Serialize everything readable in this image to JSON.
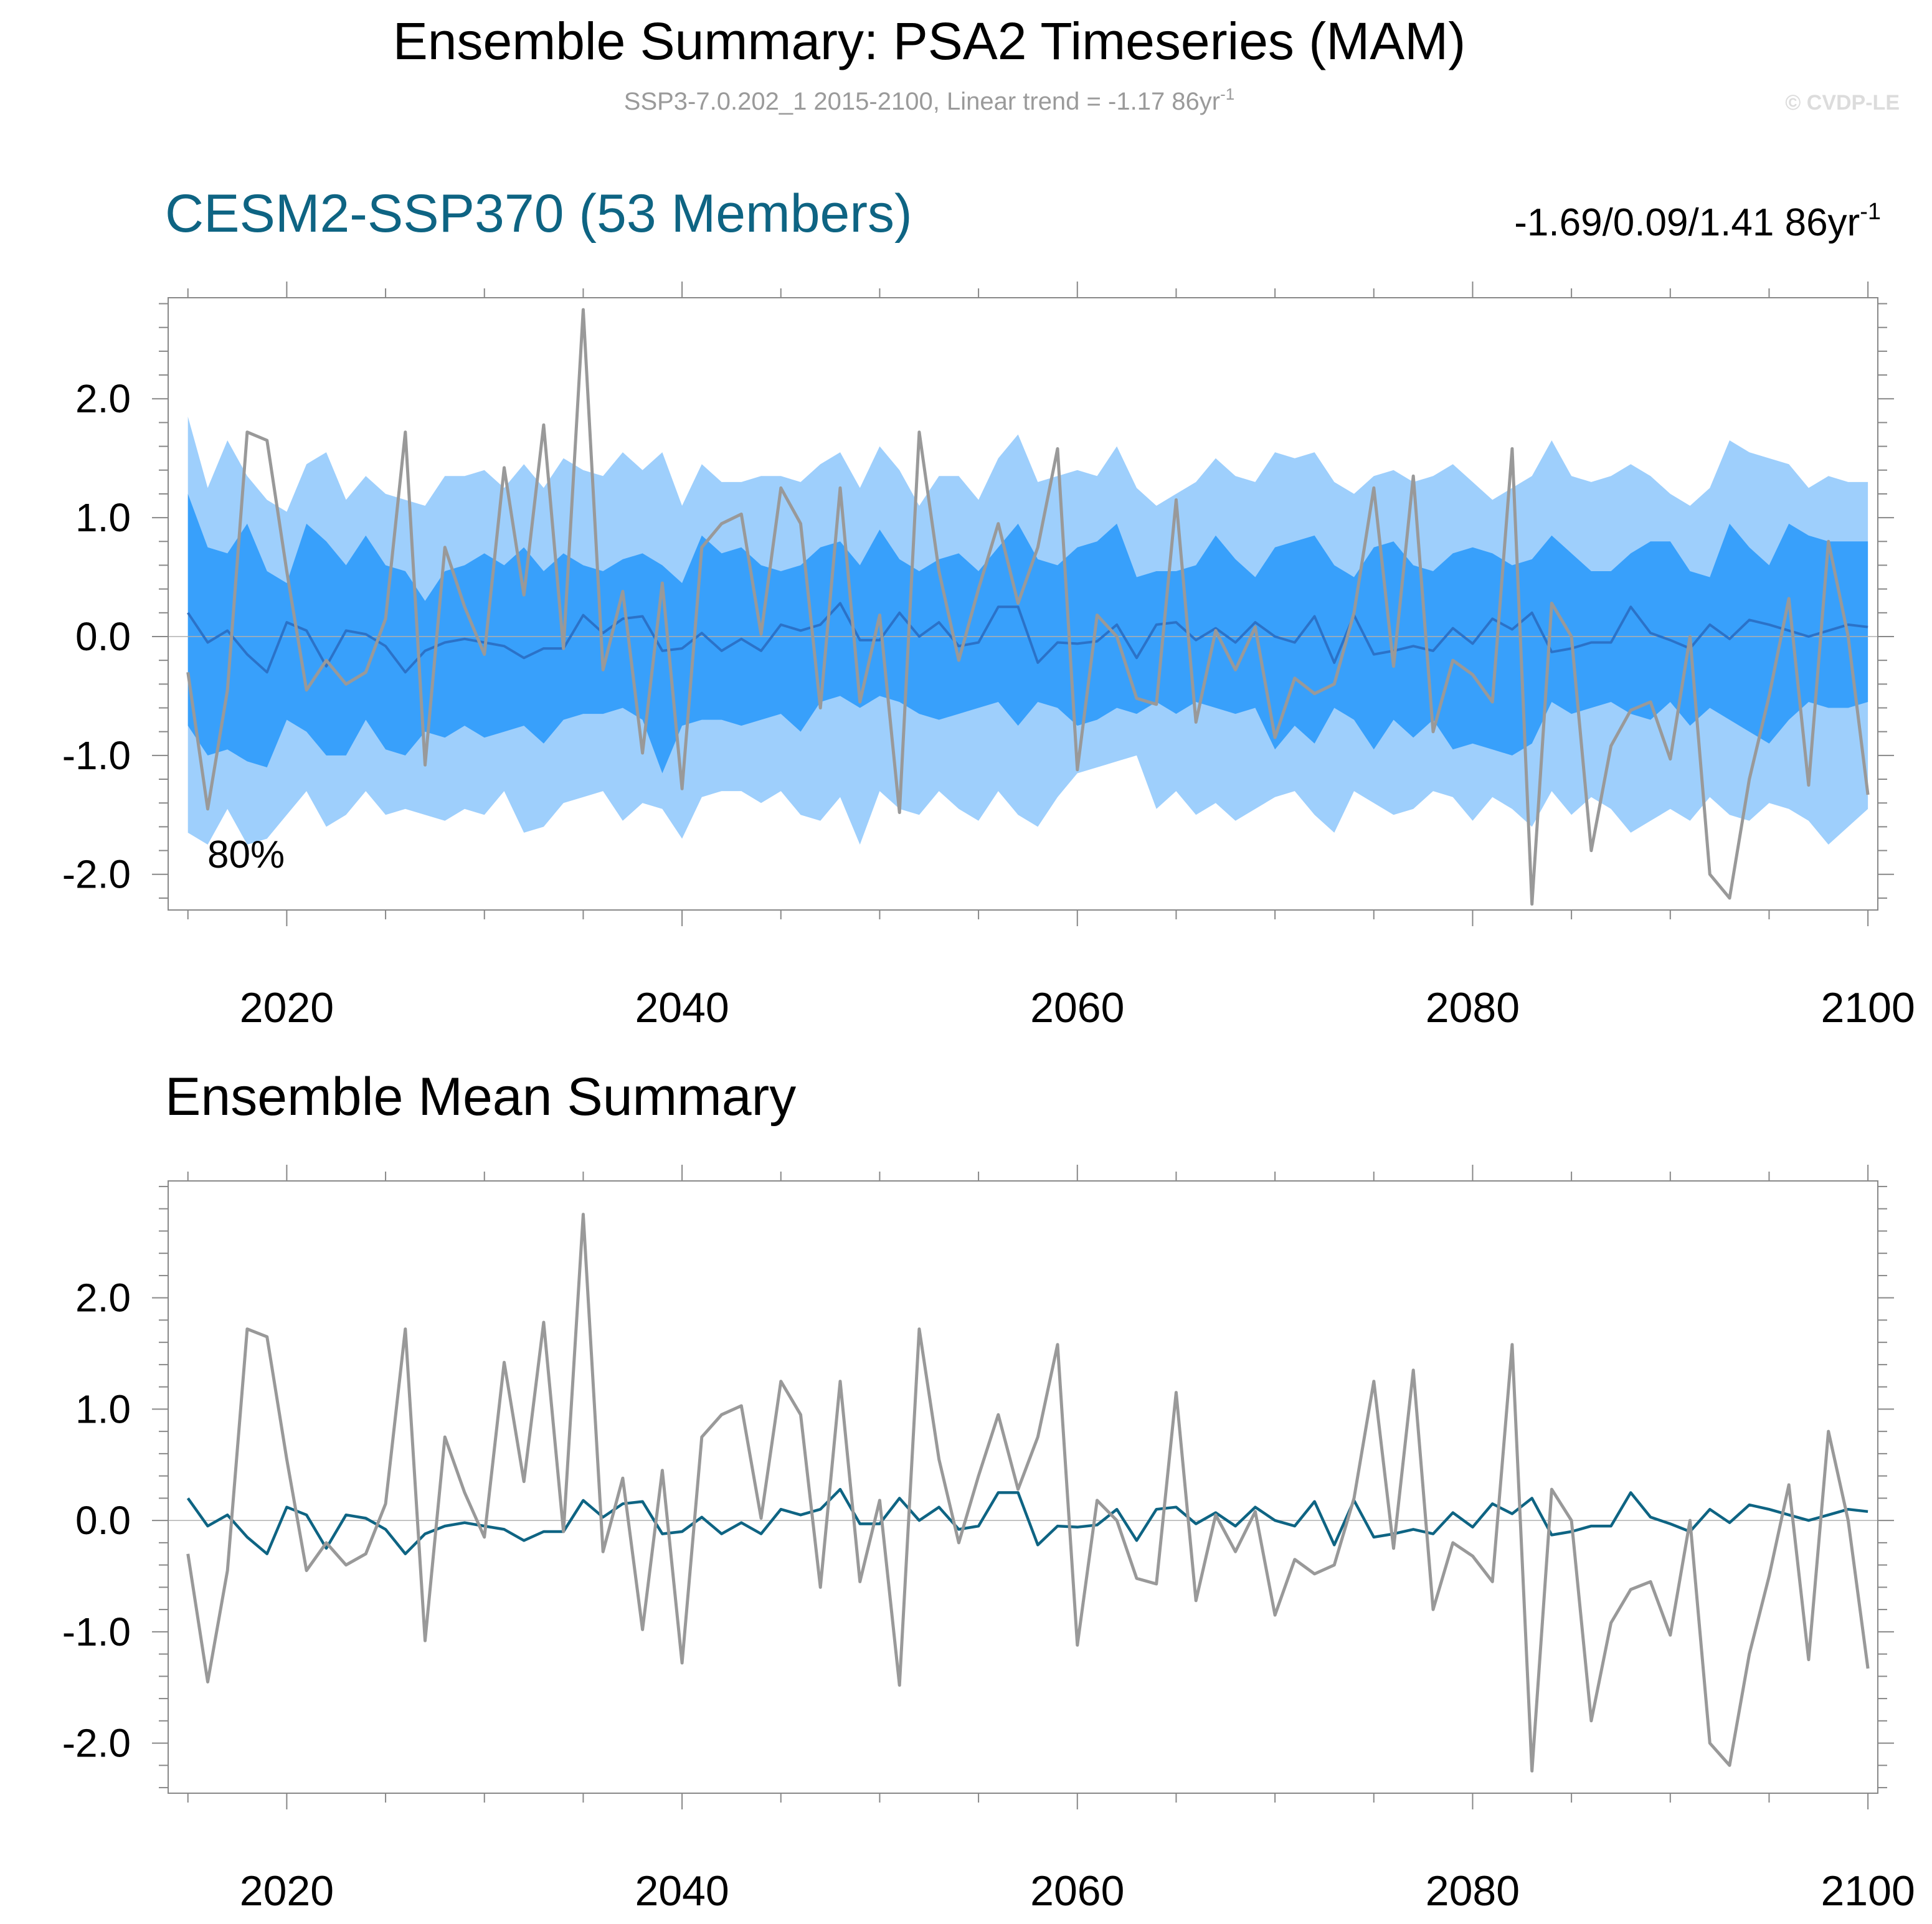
{
  "header": {
    "title": "Ensemble Summary: PSA2 Timeseries (MAM)",
    "subtitle_main": "SSP3-7.0.202_1 2015-2100, Linear trend = -1.17 86yr",
    "subtitle_sup": "-1",
    "copyright": "© CVDP-LE"
  },
  "colors": {
    "band_outer": "#9ecffc",
    "band_inner": "#38a0fb",
    "member_line": "#2b72c8",
    "mean_line": "#0e6483",
    "obs_line": "#999999",
    "title_blue": "#0e6483",
    "axis": "#888888"
  },
  "chart_data": [
    {
      "type": "area",
      "panel": "top",
      "title": "CESM2-SSP370 (53 Members)",
      "stats_text": "-1.69/0.09/1.41 86yr",
      "stats_sup": "-1",
      "band_label": "80%",
      "xlim": [
        2014,
        2100.5
      ],
      "ylim": [
        -2.3,
        2.85
      ],
      "xticks": [
        2020,
        2040,
        2060,
        2080,
        2100
      ],
      "xtick_labels": [
        "2020",
        "2040",
        "2060",
        "2080",
        "2100"
      ],
      "yticks": [
        -2.0,
        -1.0,
        0.0,
        1.0,
        2.0
      ],
      "ytick_labels": [
        "-2.0",
        "-1.0",
        "0.0",
        "1.0",
        "2.0"
      ],
      "years_start": 2015,
      "years_end": 2100,
      "series": [
        {
          "name": "ensemble_10_90",
          "kind": "band_outer",
          "upper": [
            1.85,
            1.25,
            1.65,
            1.35,
            1.15,
            1.05,
            1.45,
            1.55,
            1.15,
            1.35,
            1.2,
            1.15,
            1.1,
            1.35,
            1.35,
            1.4,
            1.25,
            1.45,
            1.25,
            1.5,
            1.4,
            1.35,
            1.55,
            1.4,
            1.55,
            1.1,
            1.45,
            1.3,
            1.3,
            1.35,
            1.35,
            1.3,
            1.45,
            1.55,
            1.25,
            1.6,
            1.4,
            1.1,
            1.35,
            1.35,
            1.15,
            1.5,
            1.7,
            1.3,
            1.35,
            1.4,
            1.35,
            1.6,
            1.25,
            1.1,
            1.2,
            1.3,
            1.5,
            1.35,
            1.3,
            1.55,
            1.5,
            1.55,
            1.3,
            1.2,
            1.35,
            1.4,
            1.3,
            1.35,
            1.45,
            1.3,
            1.15,
            1.25,
            1.35,
            1.65,
            1.35,
            1.3,
            1.35,
            1.45,
            1.35,
            1.2,
            1.1,
            1.25,
            1.65,
            1.55,
            1.5,
            1.45,
            1.25,
            1.35,
            1.3,
            1.3
          ],
          "lower": [
            -1.65,
            -1.75,
            -1.45,
            -1.75,
            -1.7,
            -1.5,
            -1.3,
            -1.6,
            -1.5,
            -1.3,
            -1.5,
            -1.45,
            -1.5,
            -1.55,
            -1.45,
            -1.5,
            -1.3,
            -1.65,
            -1.6,
            -1.4,
            -1.35,
            -1.3,
            -1.55,
            -1.4,
            -1.45,
            -1.7,
            -1.35,
            -1.3,
            -1.3,
            -1.4,
            -1.3,
            -1.5,
            -1.55,
            -1.35,
            -1.75,
            -1.3,
            -1.45,
            -1.5,
            -1.3,
            -1.45,
            -1.55,
            -1.3,
            -1.5,
            -1.6,
            -1.35,
            -1.15,
            -1.1,
            -1.05,
            -1.0,
            -1.45,
            -1.3,
            -1.5,
            -1.4,
            -1.55,
            -1.45,
            -1.35,
            -1.3,
            -1.5,
            -1.65,
            -1.3,
            -1.4,
            -1.5,
            -1.45,
            -1.3,
            -1.35,
            -1.55,
            -1.35,
            -1.45,
            -1.6,
            -1.3,
            -1.5,
            -1.35,
            -1.45,
            -1.65,
            -1.55,
            -1.45,
            -1.55,
            -1.35,
            -1.5,
            -1.55,
            -1.4,
            -1.45,
            -1.55,
            -1.75,
            -1.6,
            -1.45
          ]
        },
        {
          "name": "ensemble_25_75",
          "kind": "band_inner",
          "upper": [
            1.2,
            0.75,
            0.7,
            0.95,
            0.55,
            0.45,
            0.95,
            0.8,
            0.6,
            0.85,
            0.6,
            0.55,
            0.3,
            0.55,
            0.6,
            0.7,
            0.6,
            0.75,
            0.55,
            0.7,
            0.6,
            0.55,
            0.65,
            0.7,
            0.6,
            0.45,
            0.85,
            0.7,
            0.75,
            0.6,
            0.55,
            0.6,
            0.75,
            0.8,
            0.6,
            0.9,
            0.65,
            0.55,
            0.65,
            0.7,
            0.55,
            0.75,
            0.95,
            0.65,
            0.6,
            0.75,
            0.8,
            0.95,
            0.5,
            0.55,
            0.55,
            0.6,
            0.85,
            0.65,
            0.5,
            0.75,
            0.8,
            0.85,
            0.6,
            0.5,
            0.75,
            0.8,
            0.6,
            0.55,
            0.7,
            0.75,
            0.7,
            0.6,
            0.65,
            0.85,
            0.7,
            0.55,
            0.55,
            0.7,
            0.8,
            0.8,
            0.55,
            0.5,
            0.95,
            0.75,
            0.6,
            0.95,
            0.85,
            0.8,
            0.8,
            0.8
          ],
          "lower": [
            -0.75,
            -1.0,
            -0.95,
            -1.05,
            -1.1,
            -0.7,
            -0.8,
            -1.0,
            -1.0,
            -0.7,
            -0.95,
            -1.0,
            -0.8,
            -0.85,
            -0.75,
            -0.85,
            -0.8,
            -0.75,
            -0.9,
            -0.7,
            -0.65,
            -0.65,
            -0.6,
            -0.7,
            -1.15,
            -0.75,
            -0.7,
            -0.7,
            -0.75,
            -0.7,
            -0.65,
            -0.8,
            -0.55,
            -0.5,
            -0.6,
            -0.5,
            -0.55,
            -0.65,
            -0.7,
            -0.65,
            -0.6,
            -0.55,
            -0.75,
            -0.55,
            -0.6,
            -0.75,
            -0.7,
            -0.6,
            -0.65,
            -0.55,
            -0.65,
            -0.55,
            -0.6,
            -0.65,
            -0.6,
            -0.95,
            -0.75,
            -0.9,
            -0.6,
            -0.7,
            -0.95,
            -0.7,
            -0.85,
            -0.7,
            -0.95,
            -0.9,
            -0.95,
            -1.0,
            -0.9,
            -0.55,
            -0.65,
            -0.6,
            -0.55,
            -0.65,
            -0.7,
            -0.55,
            -0.75,
            -0.6,
            -0.7,
            -0.8,
            -0.9,
            -0.7,
            -0.55,
            -0.6,
            -0.6,
            -0.55
          ]
        },
        {
          "name": "ensemble_mean",
          "kind": "member_line",
          "values": [
            0.2,
            -0.05,
            0.05,
            -0.15,
            -0.3,
            0.12,
            0.05,
            -0.25,
            0.05,
            0.02,
            -0.08,
            -0.3,
            -0.12,
            -0.05,
            -0.02,
            -0.05,
            -0.08,
            -0.18,
            -0.1,
            -0.1,
            0.18,
            0.03,
            0.15,
            0.17,
            -0.12,
            -0.1,
            0.03,
            -0.12,
            -0.02,
            -0.12,
            0.1,
            0.05,
            0.1,
            0.28,
            -0.03,
            -0.03,
            0.2,
            0.0,
            0.12,
            -0.08,
            -0.05,
            0.25,
            0.25,
            -0.22,
            -0.05,
            -0.06,
            -0.04,
            0.1,
            -0.18,
            0.1,
            0.12,
            -0.03,
            0.07,
            -0.05,
            0.12,
            0.0,
            -0.05,
            0.17,
            -0.22,
            0.18,
            -0.15,
            -0.12,
            -0.08,
            -0.12,
            0.07,
            -0.06,
            0.15,
            0.06,
            0.2,
            -0.13,
            -0.1,
            -0.05,
            -0.05,
            0.25,
            0.03,
            -0.03,
            -0.1,
            0.1,
            -0.02,
            0.14,
            0.1,
            0.05,
            0.0,
            0.05,
            0.1,
            0.08
          ]
        },
        {
          "name": "observations",
          "kind": "obs_line",
          "values": [
            -0.3,
            -1.45,
            -0.45,
            1.72,
            1.65,
            0.55,
            -0.45,
            -0.2,
            -0.4,
            -0.3,
            0.15,
            1.72,
            -1.08,
            0.75,
            0.25,
            -0.15,
            1.42,
            0.35,
            1.78,
            -0.1,
            2.75,
            -0.28,
            0.38,
            -0.98,
            0.45,
            -1.28,
            0.75,
            0.95,
            1.03,
            0.02,
            1.25,
            0.95,
            -0.6,
            1.25,
            -0.55,
            0.18,
            -1.48,
            1.72,
            0.55,
            -0.2,
            0.4,
            0.95,
            0.28,
            0.75,
            1.58,
            -1.12,
            0.18,
            0.0,
            -0.52,
            -0.57,
            1.15,
            -0.72,
            0.05,
            -0.28,
            0.08,
            -0.85,
            -0.35,
            -0.48,
            -0.4,
            0.2,
            1.25,
            -0.25,
            1.35,
            -0.8,
            -0.2,
            -0.32,
            -0.55,
            1.58,
            -2.25,
            0.28,
            0.0,
            -1.8,
            -0.92,
            -0.62,
            -0.55,
            -1.03,
            0.0,
            -2.0,
            -2.2,
            -1.2,
            -0.5,
            0.32,
            -1.25,
            0.8,
            0.0,
            -1.33
          ]
        }
      ]
    },
    {
      "type": "line",
      "panel": "bottom",
      "title": "Ensemble Mean Summary",
      "xlim": [
        2014,
        2100.5
      ],
      "ylim": [
        -2.45,
        3.05
      ],
      "xticks": [
        2020,
        2040,
        2060,
        2080,
        2100
      ],
      "xtick_labels": [
        "2020",
        "2040",
        "2060",
        "2080",
        "2100"
      ],
      "yticks": [
        -2.0,
        -1.0,
        0.0,
        1.0,
        2.0
      ],
      "ytick_labels": [
        "-2.0",
        "-1.0",
        "0.0",
        "1.0",
        "2.0"
      ],
      "years_start": 2015,
      "years_end": 2100,
      "series": [
        {
          "name": "ensemble_mean",
          "kind": "mean_line",
          "ref": "top.ensemble_mean"
        },
        {
          "name": "observations",
          "kind": "obs_line",
          "ref": "top.observations"
        }
      ]
    }
  ]
}
